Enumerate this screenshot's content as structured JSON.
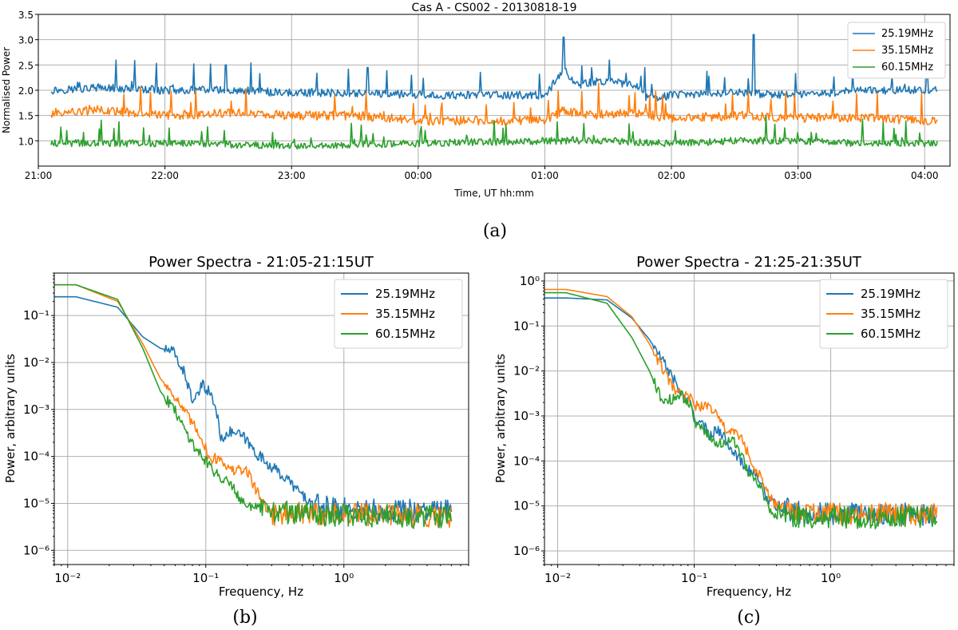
{
  "colors": {
    "s1": "#1f77b4",
    "s2": "#ff7f0e",
    "s3": "#2ca02c"
  },
  "chart_data": [
    {
      "type": "line",
      "id": "a",
      "caption": "(a)",
      "title": "Cas A - CS002 - 20130818-19",
      "xlabel": "Time, UT hh:mm",
      "ylabel": "Normalised Power",
      "xlim": [
        21.0,
        28.2
      ],
      "ylim": [
        0.5,
        3.5
      ],
      "xticks": [
        21,
        22,
        23,
        24,
        25,
        26,
        27,
        28
      ],
      "xticklabels": [
        "21:00",
        "22:00",
        "23:00",
        "00:00",
        "01:00",
        "02:00",
        "03:00",
        "04:00"
      ],
      "yticks": [
        1.0,
        1.5,
        2.0,
        2.5,
        3.0,
        3.5
      ],
      "yticklabels": [
        "1.0",
        "1.5",
        "2.0",
        "2.5",
        "3.0",
        "3.5"
      ],
      "legend": "top-right",
      "series": [
        {
          "name": "25.19MHz",
          "color_key": "s1",
          "base": [
            [
              21.1,
              2.0
            ],
            [
              21.5,
              2.05
            ],
            [
              22.0,
              2.0
            ],
            [
              22.5,
              2.0
            ],
            [
              23.0,
              1.95
            ],
            [
              23.5,
              1.95
            ],
            [
              24.0,
              1.9
            ],
            [
              24.5,
              1.9
            ],
            [
              25.0,
              1.9
            ],
            [
              25.15,
              2.4
            ],
            [
              25.25,
              2.1
            ],
            [
              25.5,
              2.2
            ],
            [
              25.75,
              2.05
            ],
            [
              25.8,
              1.85
            ],
            [
              26.0,
              1.9
            ],
            [
              26.5,
              1.95
            ],
            [
              27.0,
              1.9
            ],
            [
              27.5,
              2.0
            ],
            [
              28.1,
              2.0
            ]
          ],
          "noise": 0.08,
          "spike_rate": 0.05,
          "spike_amp": 0.55,
          "spikes": [
            [
              25.15,
              3.05
            ],
            [
              26.65,
              3.1
            ],
            [
              22.48,
              2.5
            ],
            [
              23.6,
              2.45
            ]
          ]
        },
        {
          "name": "35.15MHz",
          "color_key": "s2",
          "base": [
            [
              21.1,
              1.55
            ],
            [
              21.5,
              1.6
            ],
            [
              22.0,
              1.5
            ],
            [
              22.5,
              1.55
            ],
            [
              23.0,
              1.5
            ],
            [
              23.5,
              1.5
            ],
            [
              24.0,
              1.4
            ],
            [
              24.5,
              1.4
            ],
            [
              25.0,
              1.4
            ],
            [
              25.15,
              1.6
            ],
            [
              25.3,
              1.5
            ],
            [
              25.7,
              1.55
            ],
            [
              26.0,
              1.45
            ],
            [
              26.5,
              1.5
            ],
            [
              27.0,
              1.45
            ],
            [
              27.5,
              1.45
            ],
            [
              28.1,
              1.4
            ]
          ],
          "noise": 0.09,
          "spike_rate": 0.07,
          "spike_amp": 0.55,
          "spikes": []
        },
        {
          "name": "60.15MHz",
          "color_key": "s3",
          "base": [
            [
              21.1,
              0.95
            ],
            [
              21.5,
              0.95
            ],
            [
              22.0,
              0.95
            ],
            [
              23.0,
              0.9
            ],
            [
              24.0,
              0.95
            ],
            [
              25.0,
              1.0
            ],
            [
              25.5,
              1.0
            ],
            [
              26.0,
              0.95
            ],
            [
              26.5,
              1.0
            ],
            [
              27.0,
              1.0
            ],
            [
              27.5,
              0.95
            ],
            [
              28.1,
              0.95
            ]
          ],
          "noise": 0.07,
          "spike_rate": 0.07,
          "spike_amp": 0.45,
          "spikes": []
        }
      ]
    },
    {
      "type": "line",
      "id": "b",
      "caption": "(b)",
      "title": "Power Spectra - 21:05-21:15UT",
      "xlabel": "Frequency, Hz",
      "ylabel": "Power, arbitrary units",
      "xscale": "log",
      "yscale": "log",
      "xlim": [
        0.008,
        8
      ],
      "ylim": [
        5e-07,
        0.8
      ],
      "xticks": [
        0.01,
        0.1,
        1
      ],
      "xticklabels": [
        "10⁻²",
        "10⁻¹",
        "10⁰"
      ],
      "yticks": [
        1e-06,
        1e-05,
        0.0001,
        0.001,
        0.01,
        0.1
      ],
      "yticklabels": [
        "10⁻⁶",
        "10⁻⁵",
        "10⁻⁴",
        "10⁻³",
        "10⁻²",
        "10⁻¹"
      ],
      "legend": "top-right",
      "series": [
        {
          "name": "25.19MHz",
          "color_key": "s1",
          "points": [
            [
              0.008,
              0.25
            ],
            [
              0.0115,
              0.25
            ],
            [
              0.023,
              0.15
            ],
            [
              0.035,
              0.035
            ],
            [
              0.047,
              0.02
            ],
            [
              0.058,
              0.017
            ],
            [
              0.07,
              0.006
            ],
            [
              0.082,
              0.0013
            ],
            [
              0.094,
              0.0033
            ],
            [
              0.105,
              0.0025
            ],
            [
              0.117,
              0.0012
            ],
            [
              0.13,
              0.00022
            ],
            [
              0.14,
              0.00032
            ],
            [
              0.16,
              0.00033
            ],
            [
              0.19,
              0.00025
            ],
            [
              0.23,
              0.00012
            ],
            [
              0.3,
              6e-05
            ],
            [
              0.4,
              3e-05
            ],
            [
              0.5,
              1.5e-05
            ],
            [
              0.6,
              9e-06
            ],
            [
              1.0,
              7.5e-06
            ],
            [
              6.0,
              7e-06
            ]
          ],
          "noise_after": 0.6,
          "noise": 0.12
        },
        {
          "name": "35.15MHz",
          "color_key": "s2",
          "points": [
            [
              0.008,
              0.45
            ],
            [
              0.0115,
              0.45
            ],
            [
              0.023,
              0.2
            ],
            [
              0.035,
              0.025
            ],
            [
              0.047,
              0.0045
            ],
            [
              0.058,
              0.0022
            ],
            [
              0.07,
              0.0009
            ],
            [
              0.082,
              0.00045
            ],
            [
              0.094,
              0.00025
            ],
            [
              0.105,
              9e-05
            ],
            [
              0.13,
              9e-05
            ],
            [
              0.15,
              5e-05
            ],
            [
              0.2,
              5e-05
            ],
            [
              0.25,
              1.2e-05
            ],
            [
              0.3,
              6e-06
            ],
            [
              0.4,
              6e-06
            ],
            [
              0.6,
              6e-06
            ],
            [
              6.0,
              5.5e-06
            ]
          ],
          "noise_after": 0.3,
          "noise": 0.12
        },
        {
          "name": "60.15MHz",
          "color_key": "s3",
          "points": [
            [
              0.008,
              0.45
            ],
            [
              0.0115,
              0.45
            ],
            [
              0.023,
              0.22
            ],
            [
              0.035,
              0.02
            ],
            [
              0.047,
              0.0024
            ],
            [
              0.058,
              0.0011
            ],
            [
              0.07,
              0.0004
            ],
            [
              0.082,
              0.00017
            ],
            [
              0.094,
              0.0001
            ],
            [
              0.105,
              7e-05
            ],
            [
              0.12,
              4e-05
            ],
            [
              0.15,
              3e-05
            ],
            [
              0.18,
              1.2e-05
            ],
            [
              0.22,
              8e-06
            ],
            [
              0.3,
              7e-06
            ],
            [
              0.5,
              6e-06
            ],
            [
              6.0,
              5e-06
            ]
          ],
          "noise_after": 0.25,
          "noise": 0.12
        }
      ]
    },
    {
      "type": "line",
      "id": "c",
      "caption": "(c)",
      "title": "Power Spectra - 21:25-21:35UT",
      "xlabel": "Frequency, Hz",
      "ylabel": "Power, arbitrary units",
      "xscale": "log",
      "yscale": "log",
      "xlim": [
        0.008,
        8
      ],
      "ylim": [
        5e-07,
        1.5
      ],
      "xticks": [
        0.01,
        0.1,
        1
      ],
      "xticklabels": [
        "10⁻²",
        "10⁻¹",
        "10⁰"
      ],
      "yticks": [
        1e-06,
        1e-05,
        0.0001,
        0.001,
        0.01,
        0.1,
        1
      ],
      "yticklabels": [
        "10⁻⁶",
        "10⁻⁵",
        "10⁻⁴",
        "10⁻³",
        "10⁻²",
        "10⁻¹",
        "10⁰"
      ],
      "legend": "top-right",
      "series": [
        {
          "name": "25.19MHz",
          "color_key": "s1",
          "points": [
            [
              0.008,
              0.42
            ],
            [
              0.0115,
              0.42
            ],
            [
              0.023,
              0.38
            ],
            [
              0.035,
              0.15
            ],
            [
              0.047,
              0.05
            ],
            [
              0.058,
              0.018
            ],
            [
              0.07,
              0.007
            ],
            [
              0.082,
              0.0028
            ],
            [
              0.094,
              0.0018
            ],
            [
              0.105,
              0.0007
            ],
            [
              0.117,
              0.0006
            ],
            [
              0.13,
              0.0004
            ],
            [
              0.15,
              0.0005
            ],
            [
              0.17,
              0.0003
            ],
            [
              0.2,
              0.00015
            ],
            [
              0.23,
              8e-05
            ],
            [
              0.26,
              6e-05
            ],
            [
              0.3,
              4e-05
            ],
            [
              0.34,
              1.5e-05
            ],
            [
              0.4,
              1e-05
            ],
            [
              0.6,
              7e-06
            ],
            [
              6.0,
              6.5e-06
            ]
          ],
          "noise_after": 0.45,
          "noise": 0.12
        },
        {
          "name": "35.15MHz",
          "color_key": "s2",
          "points": [
            [
              0.008,
              0.65
            ],
            [
              0.0115,
              0.65
            ],
            [
              0.023,
              0.45
            ],
            [
              0.035,
              0.16
            ],
            [
              0.047,
              0.04
            ],
            [
              0.058,
              0.012
            ],
            [
              0.07,
              0.004
            ],
            [
              0.082,
              0.0028
            ],
            [
              0.094,
              0.0025
            ],
            [
              0.105,
              0.0016
            ],
            [
              0.13,
              0.0017
            ],
            [
              0.15,
              0.0009
            ],
            [
              0.17,
              0.0005
            ],
            [
              0.2,
              0.0004
            ],
            [
              0.23,
              0.0003
            ],
            [
              0.26,
              8e-05
            ],
            [
              0.3,
              5e-05
            ],
            [
              0.34,
              2e-05
            ],
            [
              0.4,
              1e-05
            ],
            [
              0.6,
              7e-06
            ],
            [
              6.0,
              6.5e-06
            ]
          ],
          "noise_after": 0.45,
          "noise": 0.12
        },
        {
          "name": "60.15MHz",
          "color_key": "s3",
          "points": [
            [
              0.008,
              0.55
            ],
            [
              0.0115,
              0.55
            ],
            [
              0.023,
              0.32
            ],
            [
              0.035,
              0.055
            ],
            [
              0.047,
              0.01
            ],
            [
              0.058,
              0.0022
            ],
            [
              0.07,
              0.0024
            ],
            [
              0.082,
              0.0028
            ],
            [
              0.094,
              0.0015
            ],
            [
              0.105,
              0.0006
            ],
            [
              0.12,
              0.00045
            ],
            [
              0.14,
              0.0003
            ],
            [
              0.16,
              0.00022
            ],
            [
              0.19,
              0.00035
            ],
            [
              0.22,
              0.00015
            ],
            [
              0.25,
              5e-05
            ],
            [
              0.3,
              3e-05
            ],
            [
              0.35,
              1e-05
            ],
            [
              0.4,
              6e-06
            ],
            [
              0.6,
              5.5e-06
            ],
            [
              6.0,
              5.5e-06
            ]
          ],
          "noise_after": 0.4,
          "noise": 0.12
        }
      ]
    }
  ]
}
